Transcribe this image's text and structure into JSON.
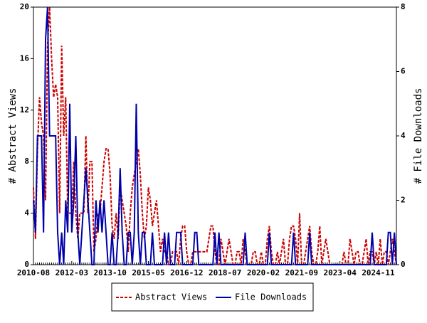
{
  "chart_data": {
    "type": "line",
    "categories": [
      "2010-08",
      null,
      null,
      null,
      null,
      null,
      null,
      null,
      null,
      null,
      null,
      null,
      null,
      null,
      null,
      null,
      null,
      null,
      null,
      "2012-03",
      null,
      null,
      null,
      null,
      null,
      null,
      null,
      null,
      null,
      null,
      null,
      null,
      null,
      null,
      null,
      null,
      null,
      null,
      "2013-10",
      null,
      null,
      null,
      null,
      null,
      null,
      null,
      null,
      null,
      null,
      null,
      null,
      null,
      null,
      null,
      null,
      null,
      null,
      "2015-05",
      null,
      null,
      null,
      null,
      null,
      null,
      null,
      null,
      null,
      null,
      null,
      null,
      null,
      null,
      null,
      null,
      null,
      null,
      "2016-12",
      null,
      null,
      null,
      null,
      null,
      null,
      null,
      null,
      null,
      null,
      null,
      null,
      null,
      null,
      null,
      null,
      null,
      null,
      "2018-07",
      null,
      null,
      null,
      null,
      null,
      null,
      null,
      null,
      null,
      null,
      null,
      null,
      null,
      null,
      null,
      null,
      null,
      null,
      "2020-02",
      null,
      null,
      null,
      null,
      null,
      null,
      null,
      null,
      null,
      null,
      null,
      null,
      null,
      null,
      null,
      null,
      null,
      null,
      "2021-09",
      null,
      null,
      null,
      null,
      null,
      null,
      null,
      null,
      null,
      null,
      null,
      null,
      null,
      null,
      null,
      null,
      null,
      null,
      "2023-04",
      null,
      null,
      null,
      null,
      null,
      null,
      null,
      null,
      null,
      null,
      null,
      null,
      null,
      null,
      null,
      null,
      null,
      null,
      "2024-11",
      null,
      null,
      null,
      null,
      null,
      null,
      null,
      null,
      null
    ],
    "series": [
      {
        "name": "Abstract Views",
        "color": "#cc0000",
        "style": "dashed",
        "axis": "y",
        "values": [
          6,
          2,
          9,
          13,
          11,
          10,
          5,
          17,
          20,
          16,
          13,
          14,
          13,
          4,
          17,
          10,
          13,
          4,
          4,
          4,
          8,
          4,
          2,
          4,
          4,
          4,
          10,
          4,
          8,
          8,
          1,
          2,
          4,
          4,
          6,
          8,
          9,
          9,
          7,
          3,
          2,
          4,
          2,
          6,
          5,
          4,
          3,
          1,
          4,
          6,
          7,
          8,
          9,
          7,
          4,
          2,
          3,
          6,
          5,
          3,
          4,
          5,
          3,
          1,
          2,
          1,
          1,
          0,
          0,
          1,
          1,
          1,
          0,
          2,
          3,
          3,
          1,
          0,
          0,
          1,
          1,
          1,
          1,
          1,
          1,
          1,
          1,
          2,
          3,
          3,
          1,
          0,
          0,
          2,
          1,
          0,
          1,
          2,
          1,
          0,
          0,
          1,
          1,
          0,
          2,
          1,
          0,
          0,
          0,
          1,
          1,
          0,
          0,
          1,
          0,
          0,
          2,
          3,
          1,
          0,
          0,
          1,
          0,
          1,
          2,
          0,
          0,
          2,
          3,
          3,
          2,
          0,
          4,
          0,
          0,
          1,
          2,
          3,
          1,
          0,
          0,
          1,
          3,
          0,
          1,
          2,
          1,
          0,
          0,
          0,
          0,
          0,
          0,
          0,
          1,
          0,
          0,
          2,
          1,
          0,
          1,
          1,
          0,
          0,
          1,
          2,
          0,
          1,
          1,
          0,
          1,
          0,
          2,
          0,
          1,
          1,
          0,
          1,
          2,
          1,
          0
        ]
      },
      {
        "name": "File Downloads",
        "color": "#0000aa",
        "style": "solid",
        "axis": "y2",
        "values": [
          2,
          1,
          4,
          4,
          4,
          1,
          7,
          8,
          4,
          4,
          4,
          4,
          1,
          0,
          1,
          0,
          2,
          1,
          5,
          1,
          2,
          4,
          1,
          0,
          1,
          2,
          3,
          2,
          1,
          0,
          0,
          2,
          1,
          2,
          1,
          2,
          1,
          0,
          0,
          1,
          0,
          0,
          1,
          3,
          1,
          0,
          0,
          1,
          1,
          0,
          1,
          5,
          1,
          0,
          1,
          1,
          0,
          0,
          0,
          1,
          0,
          0,
          0,
          0,
          0,
          1,
          0,
          1,
          0,
          0,
          0,
          1,
          1,
          1,
          0,
          0,
          0,
          0,
          0,
          0,
          1,
          1,
          0,
          0,
          0,
          0,
          0,
          0,
          0,
          0,
          1,
          0,
          1,
          0,
          0,
          0,
          0,
          0,
          0,
          0,
          0,
          0,
          0,
          0,
          0,
          1,
          0,
          0,
          0,
          0,
          0,
          0,
          0,
          0,
          0,
          0,
          0,
          1,
          0,
          0,
          0,
          0,
          0,
          0,
          0,
          0,
          0,
          0,
          0,
          1,
          0,
          0,
          0,
          0,
          0,
          0,
          0,
          1,
          0,
          0,
          0,
          0,
          0,
          0,
          0,
          0,
          0,
          0,
          0,
          0,
          0,
          0,
          0,
          0,
          0,
          0,
          0,
          0,
          0,
          0,
          0,
          0,
          0,
          0,
          0,
          0,
          0,
          0,
          1,
          0,
          0,
          0,
          0,
          0,
          0,
          0,
          1,
          1,
          0,
          1,
          0
        ]
      }
    ],
    "ylabel": "# Abstract Views",
    "y2label": "# File Downloads",
    "ylim": [
      0,
      20
    ],
    "yticks": [
      0,
      4,
      8,
      12,
      16,
      20
    ],
    "y2lim": [
      0,
      8
    ],
    "y2ticks": [
      0,
      2,
      4,
      6,
      8
    ],
    "legend": "bottom"
  }
}
